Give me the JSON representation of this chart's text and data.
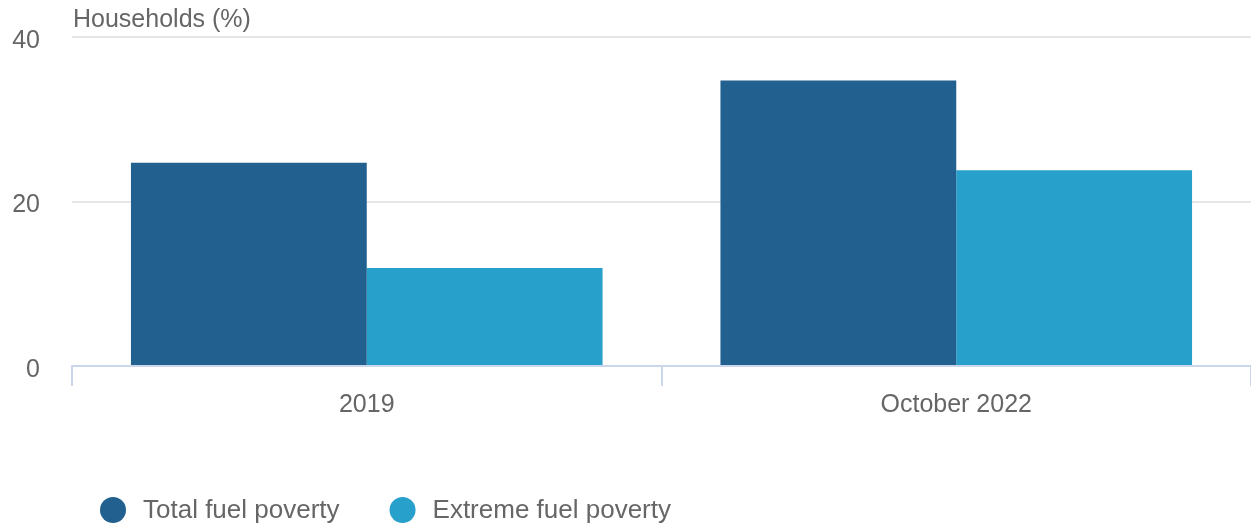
{
  "chart_data": {
    "type": "bar",
    "ylabel": "Households (%)",
    "categories": [
      "2019",
      "October 2022"
    ],
    "series": [
      {
        "name": "Total fuel poverty",
        "color": "#22608f",
        "values": [
          24.7,
          34.7
        ]
      },
      {
        "name": "Extreme fuel poverty",
        "color": "#28a0cc",
        "values": [
          11.9,
          23.8
        ]
      }
    ],
    "ylim": [
      0,
      40
    ],
    "yticks": [
      0,
      20,
      40
    ],
    "grid": "y",
    "legend": "bottom left"
  }
}
